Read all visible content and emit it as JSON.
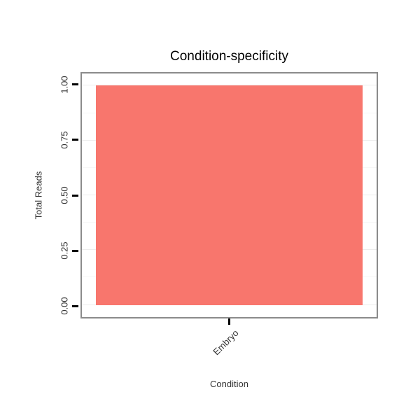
{
  "chart_data": {
    "type": "bar",
    "title": "Condition-specificity",
    "xlabel": "Condition",
    "ylabel": "Total Reads",
    "categories": [
      "Embryo"
    ],
    "values": [
      1.0
    ],
    "ylim": [
      0,
      1
    ],
    "yticks": [
      0,
      0.25,
      0.5,
      0.75,
      1
    ],
    "ytick_labels": [
      "0.00",
      "0.25",
      "0.50",
      "0.75",
      "1.00"
    ],
    "bar_color": "#F8766D",
    "panel_border_color": "#8B8B8B",
    "grid_major_color": "#EDEDED",
    "grid_minor_color": "#F6F6F6",
    "grid": "on",
    "legend": "none"
  }
}
